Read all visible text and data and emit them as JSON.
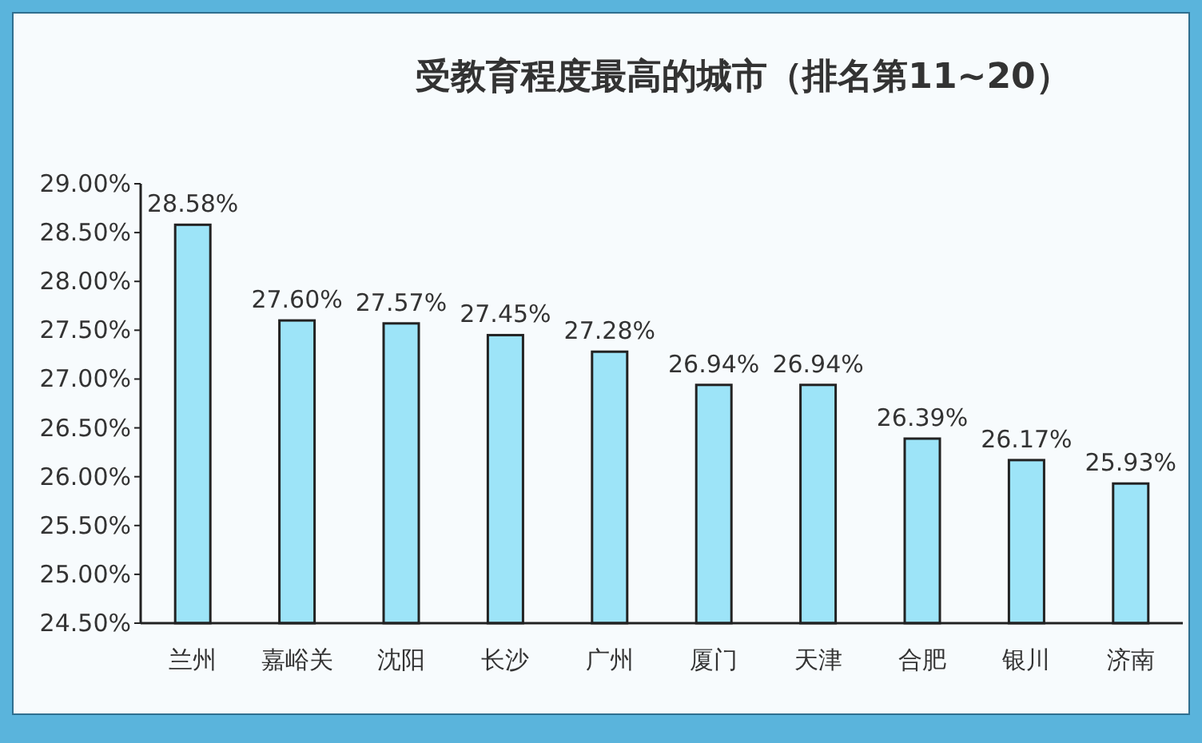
{
  "chart_data": {
    "type": "bar",
    "title": "受教育程度最高的城市（排名第11~20）",
    "categories": [
      "兰州",
      "嘉峪关",
      "沈阳",
      "长沙",
      "广州",
      "厦门",
      "天津",
      "合肥",
      "银川",
      "济南"
    ],
    "values": [
      28.58,
      27.6,
      27.57,
      27.45,
      27.28,
      26.94,
      26.94,
      26.39,
      26.17,
      25.93
    ],
    "value_labels": [
      "28.58%",
      "27.60%",
      "27.57%",
      "27.45%",
      "27.28%",
      "26.94%",
      "26.94%",
      "26.39%",
      "26.17%",
      "25.93%"
    ],
    "color": "#9de4f8",
    "ylim": [
      24.5,
      29.0
    ],
    "yticks": [
      {
        "value": 24.5,
        "label": "24.50%"
      },
      {
        "value": 25.0,
        "label": "25.00%"
      },
      {
        "value": 25.5,
        "label": "25.50%"
      },
      {
        "value": 26.0,
        "label": "26.00%"
      },
      {
        "value": 26.5,
        "label": "26.50%"
      },
      {
        "value": 27.0,
        "label": "27.00%"
      },
      {
        "value": 27.5,
        "label": "27.50%"
      },
      {
        "value": 28.0,
        "label": "28.00%"
      },
      {
        "value": 28.5,
        "label": "28.50%"
      },
      {
        "value": 29.0,
        "label": "29.00%"
      }
    ],
    "orientation": "vertical"
  }
}
